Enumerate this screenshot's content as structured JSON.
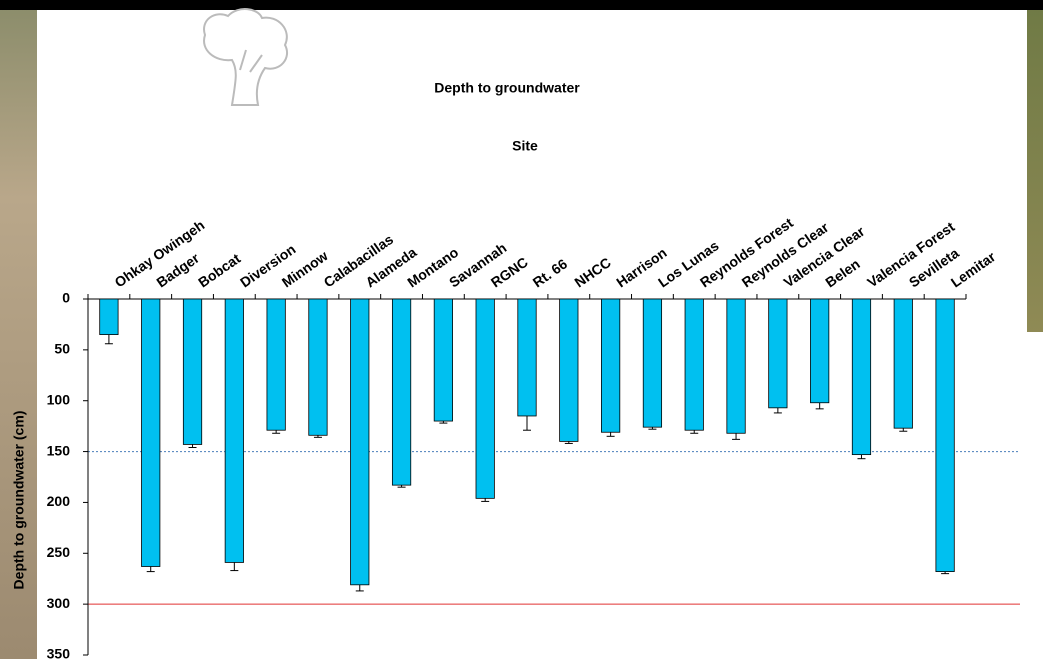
{
  "chart_data": {
    "type": "bar",
    "title": "Depth to groundwater",
    "x_label": "Site",
    "y_label": "Depth to groundwater (cm)",
    "categories": [
      "Ohkay Owingeh",
      "Badger",
      "Bobcat",
      "Diversion",
      "Minnow",
      "Calabacillas",
      "Alameda",
      "Montano",
      "Savannah",
      "RGNC",
      "Rt. 66",
      "NHCC",
      "Harrison",
      "Los Lunas",
      "Reynolds Forest",
      "Reynolds Clear",
      "Valencia Clear",
      "Belen",
      "Valencia Forest",
      "Sevilleta",
      "Lemitar"
    ],
    "values": [
      35,
      263,
      143,
      259,
      129,
      134,
      281,
      183,
      120,
      196,
      115,
      140,
      131,
      126,
      129,
      132,
      107,
      102,
      153,
      127,
      268
    ],
    "errors": [
      9,
      5,
      3,
      8,
      3,
      2,
      6,
      2,
      2,
      3,
      14,
      2,
      4,
      2,
      3,
      6,
      5,
      6,
      4,
      3,
      2
    ],
    "color": "#00c0f0",
    "ylim": [
      0,
      350
    ],
    "yticks": [
      0,
      50,
      100,
      150,
      200,
      250,
      300,
      350
    ],
    "y_reversed": true,
    "reference_lines": [
      {
        "value": 150,
        "color": "#4a7ebb"
      },
      {
        "value": 300,
        "color": "#e03030"
      }
    ]
  }
}
